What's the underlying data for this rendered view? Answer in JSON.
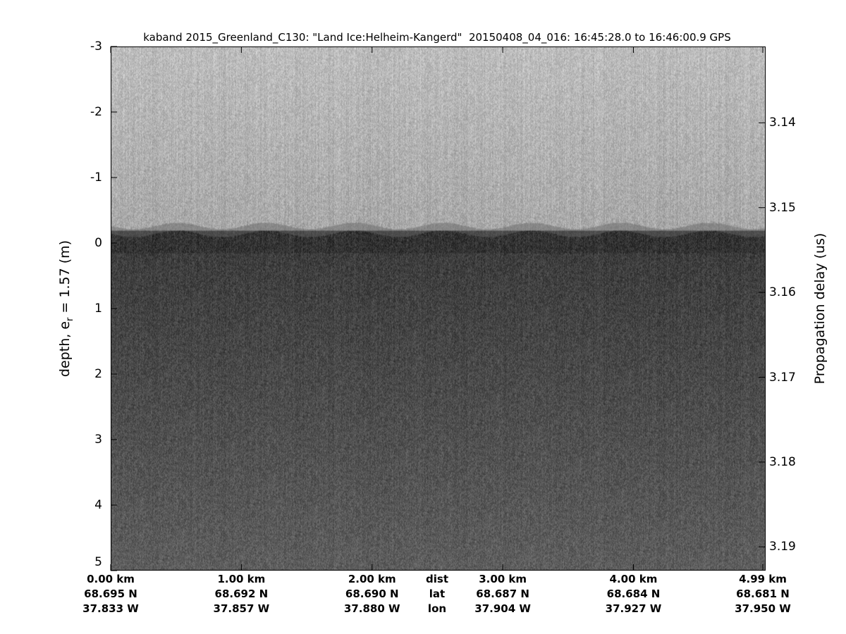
{
  "chart_data": {
    "type": "heatmap",
    "title": "kaband 2015_Greenland_C130: \"Land Ice:Helheim-Kangerd\"  20150408_04_016: 16:45:28.0 to 16:46:00.9 GPS",
    "ylabel_left": "depth, e",
    "ylabel_left_sub": "r",
    "ylabel_left_rest": " = 1.57 (m)",
    "ylabel_right": "Propagation delay (us)",
    "ylim_left": [
      -3,
      5
    ],
    "yticks_left": [
      "-3",
      "-2",
      "-1",
      "0",
      "1",
      "2",
      "3",
      "4",
      "5"
    ],
    "yticks_left_values": [
      -3,
      -2,
      -1,
      0,
      1,
      2,
      3,
      4,
      5
    ],
    "yticks_right": [
      "3.14",
      "3.15",
      "3.16",
      "3.17",
      "3.18",
      "3.19"
    ],
    "yticks_right_values": [
      3.14,
      3.15,
      3.16,
      3.17,
      3.18,
      3.19
    ],
    "right_axis_at_depth_minus3": 3.131,
    "right_axis_at_depth_5": 3.1928,
    "xlim_km": [
      0,
      4.99
    ],
    "colormap": "gray",
    "surface_depth": 0,
    "x_ticks": [
      {
        "km": 0,
        "dist": "0.00 km",
        "lat": "68.695 N",
        "lon": "37.833 W"
      },
      {
        "km": 1,
        "dist": "1.00 km",
        "lat": "68.692 N",
        "lon": "37.857 W"
      },
      {
        "km": 2,
        "dist": "2.00 km",
        "lat": "68.690 N",
        "lon": "37.880 W"
      },
      {
        "km": 3,
        "dist": "3.00 km",
        "lat": "68.687 N",
        "lon": "37.904 W"
      },
      {
        "km": 4,
        "dist": "4.00 km",
        "lat": "68.684 N",
        "lon": "37.927 W"
      },
      {
        "km": 4.99,
        "dist": "4.99 km",
        "lat": "68.681 N",
        "lon": "37.950 W"
      }
    ],
    "row_labels": {
      "dist": "dist",
      "lat": "lat",
      "lon": "lon"
    }
  }
}
